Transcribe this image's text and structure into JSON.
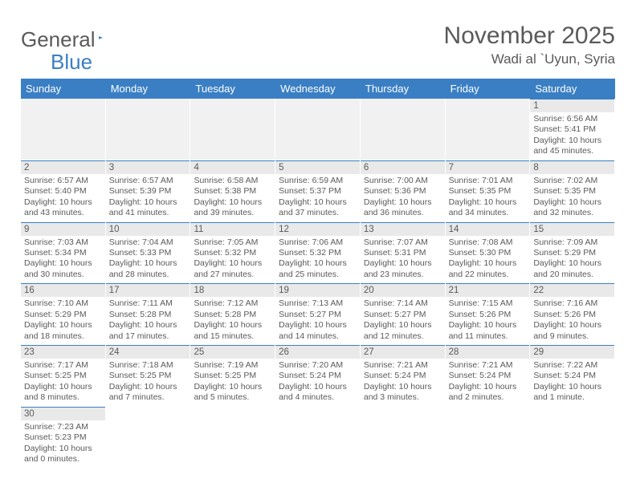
{
  "logo": {
    "text1": "General",
    "text2": "Blue"
  },
  "title": "November 2025",
  "location": "Wadi al `Uyun, Syria",
  "colors": {
    "header_bg": "#3a7fc4",
    "header_fg": "#ffffff",
    "daynum_bg": "#e9e9e9",
    "empty_bg": "#f1f1f1",
    "text": "#5a5a5a",
    "rule": "#3a7fc4"
  },
  "day_names": [
    "Sunday",
    "Monday",
    "Tuesday",
    "Wednesday",
    "Thursday",
    "Friday",
    "Saturday"
  ],
  "weeks": [
    [
      null,
      null,
      null,
      null,
      null,
      null,
      {
        "n": "1",
        "sr": "6:56 AM",
        "ss": "5:41 PM",
        "dl": "10 hours and 45 minutes."
      }
    ],
    [
      {
        "n": "2",
        "sr": "6:57 AM",
        "ss": "5:40 PM",
        "dl": "10 hours and 43 minutes."
      },
      {
        "n": "3",
        "sr": "6:57 AM",
        "ss": "5:39 PM",
        "dl": "10 hours and 41 minutes."
      },
      {
        "n": "4",
        "sr": "6:58 AM",
        "ss": "5:38 PM",
        "dl": "10 hours and 39 minutes."
      },
      {
        "n": "5",
        "sr": "6:59 AM",
        "ss": "5:37 PM",
        "dl": "10 hours and 37 minutes."
      },
      {
        "n": "6",
        "sr": "7:00 AM",
        "ss": "5:36 PM",
        "dl": "10 hours and 36 minutes."
      },
      {
        "n": "7",
        "sr": "7:01 AM",
        "ss": "5:35 PM",
        "dl": "10 hours and 34 minutes."
      },
      {
        "n": "8",
        "sr": "7:02 AM",
        "ss": "5:35 PM",
        "dl": "10 hours and 32 minutes."
      }
    ],
    [
      {
        "n": "9",
        "sr": "7:03 AM",
        "ss": "5:34 PM",
        "dl": "10 hours and 30 minutes."
      },
      {
        "n": "10",
        "sr": "7:04 AM",
        "ss": "5:33 PM",
        "dl": "10 hours and 28 minutes."
      },
      {
        "n": "11",
        "sr": "7:05 AM",
        "ss": "5:32 PM",
        "dl": "10 hours and 27 minutes."
      },
      {
        "n": "12",
        "sr": "7:06 AM",
        "ss": "5:32 PM",
        "dl": "10 hours and 25 minutes."
      },
      {
        "n": "13",
        "sr": "7:07 AM",
        "ss": "5:31 PM",
        "dl": "10 hours and 23 minutes."
      },
      {
        "n": "14",
        "sr": "7:08 AM",
        "ss": "5:30 PM",
        "dl": "10 hours and 22 minutes."
      },
      {
        "n": "15",
        "sr": "7:09 AM",
        "ss": "5:29 PM",
        "dl": "10 hours and 20 minutes."
      }
    ],
    [
      {
        "n": "16",
        "sr": "7:10 AM",
        "ss": "5:29 PM",
        "dl": "10 hours and 18 minutes."
      },
      {
        "n": "17",
        "sr": "7:11 AM",
        "ss": "5:28 PM",
        "dl": "10 hours and 17 minutes."
      },
      {
        "n": "18",
        "sr": "7:12 AM",
        "ss": "5:28 PM",
        "dl": "10 hours and 15 minutes."
      },
      {
        "n": "19",
        "sr": "7:13 AM",
        "ss": "5:27 PM",
        "dl": "10 hours and 14 minutes."
      },
      {
        "n": "20",
        "sr": "7:14 AM",
        "ss": "5:27 PM",
        "dl": "10 hours and 12 minutes."
      },
      {
        "n": "21",
        "sr": "7:15 AM",
        "ss": "5:26 PM",
        "dl": "10 hours and 11 minutes."
      },
      {
        "n": "22",
        "sr": "7:16 AM",
        "ss": "5:26 PM",
        "dl": "10 hours and 9 minutes."
      }
    ],
    [
      {
        "n": "23",
        "sr": "7:17 AM",
        "ss": "5:25 PM",
        "dl": "10 hours and 8 minutes."
      },
      {
        "n": "24",
        "sr": "7:18 AM",
        "ss": "5:25 PM",
        "dl": "10 hours and 7 minutes."
      },
      {
        "n": "25",
        "sr": "7:19 AM",
        "ss": "5:25 PM",
        "dl": "10 hours and 5 minutes."
      },
      {
        "n": "26",
        "sr": "7:20 AM",
        "ss": "5:24 PM",
        "dl": "10 hours and 4 minutes."
      },
      {
        "n": "27",
        "sr": "7:21 AM",
        "ss": "5:24 PM",
        "dl": "10 hours and 3 minutes."
      },
      {
        "n": "28",
        "sr": "7:21 AM",
        "ss": "5:24 PM",
        "dl": "10 hours and 2 minutes."
      },
      {
        "n": "29",
        "sr": "7:22 AM",
        "ss": "5:24 PM",
        "dl": "10 hours and 1 minute."
      }
    ],
    [
      {
        "n": "30",
        "sr": "7:23 AM",
        "ss": "5:23 PM",
        "dl": "10 hours and 0 minutes."
      },
      null,
      null,
      null,
      null,
      null,
      null
    ]
  ],
  "labels": {
    "sunrise": "Sunrise:",
    "sunset": "Sunset:",
    "daylight": "Daylight:"
  }
}
